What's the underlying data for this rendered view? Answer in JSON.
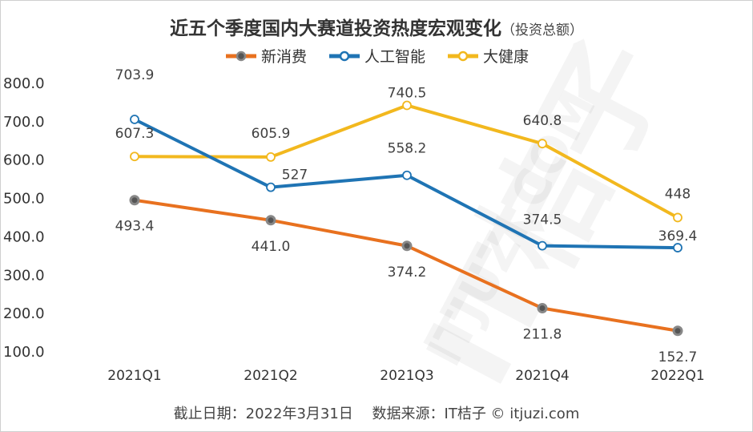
{
  "title": "近五个季度国内大赛道投资热度宏观变化",
  "subtitle": "（投资总额）",
  "footer": "截止日期：2022年3月31日　 数据来源：IT桔子 © itjuzi.com",
  "watermark": {
    "brand": "IT桔子",
    "domain": "ITJUZI.COM"
  },
  "chart_data": {
    "type": "line",
    "title": "近五个季度国内大赛道投资热度宏观变化（投资总额）",
    "xlabel": "",
    "ylabel": "",
    "categories": [
      "2021Q1",
      "2021Q2",
      "2021Q3",
      "2021Q4",
      "2022Q1"
    ],
    "ylim": [
      100,
      800
    ],
    "yticks": [
      "100.0",
      "200.0",
      "300.0",
      "400.0",
      "500.0",
      "600.0",
      "700.0",
      "800.0"
    ],
    "grid": false,
    "legend_position": "top-center",
    "series": [
      {
        "name": "新消费",
        "color": "#E8711F",
        "marker_fill": "#555555",
        "marker_stroke": "#888888",
        "values": [
          493.4,
          441.0,
          374.2,
          211.8,
          152.7
        ],
        "labels": [
          "493.4",
          "441.0",
          "374.2",
          "211.8",
          "152.7"
        ]
      },
      {
        "name": "人工智能",
        "color": "#1F74B4",
        "marker_fill": "#ffffff",
        "marker_stroke": "#1F74B4",
        "values": [
          703.9,
          527,
          558.2,
          374.5,
          369.4
        ],
        "labels": [
          "703.9",
          "527",
          "558.2",
          "374.5",
          "369.4"
        ]
      },
      {
        "name": "大健康",
        "color": "#F2B81E",
        "marker_fill": "#ffffff",
        "marker_stroke": "#F2B81E",
        "values": [
          607.3,
          605.9,
          740.5,
          640.8,
          448
        ],
        "labels": [
          "607.3",
          "605.9",
          "740.5",
          "640.8",
          "448"
        ]
      }
    ]
  }
}
